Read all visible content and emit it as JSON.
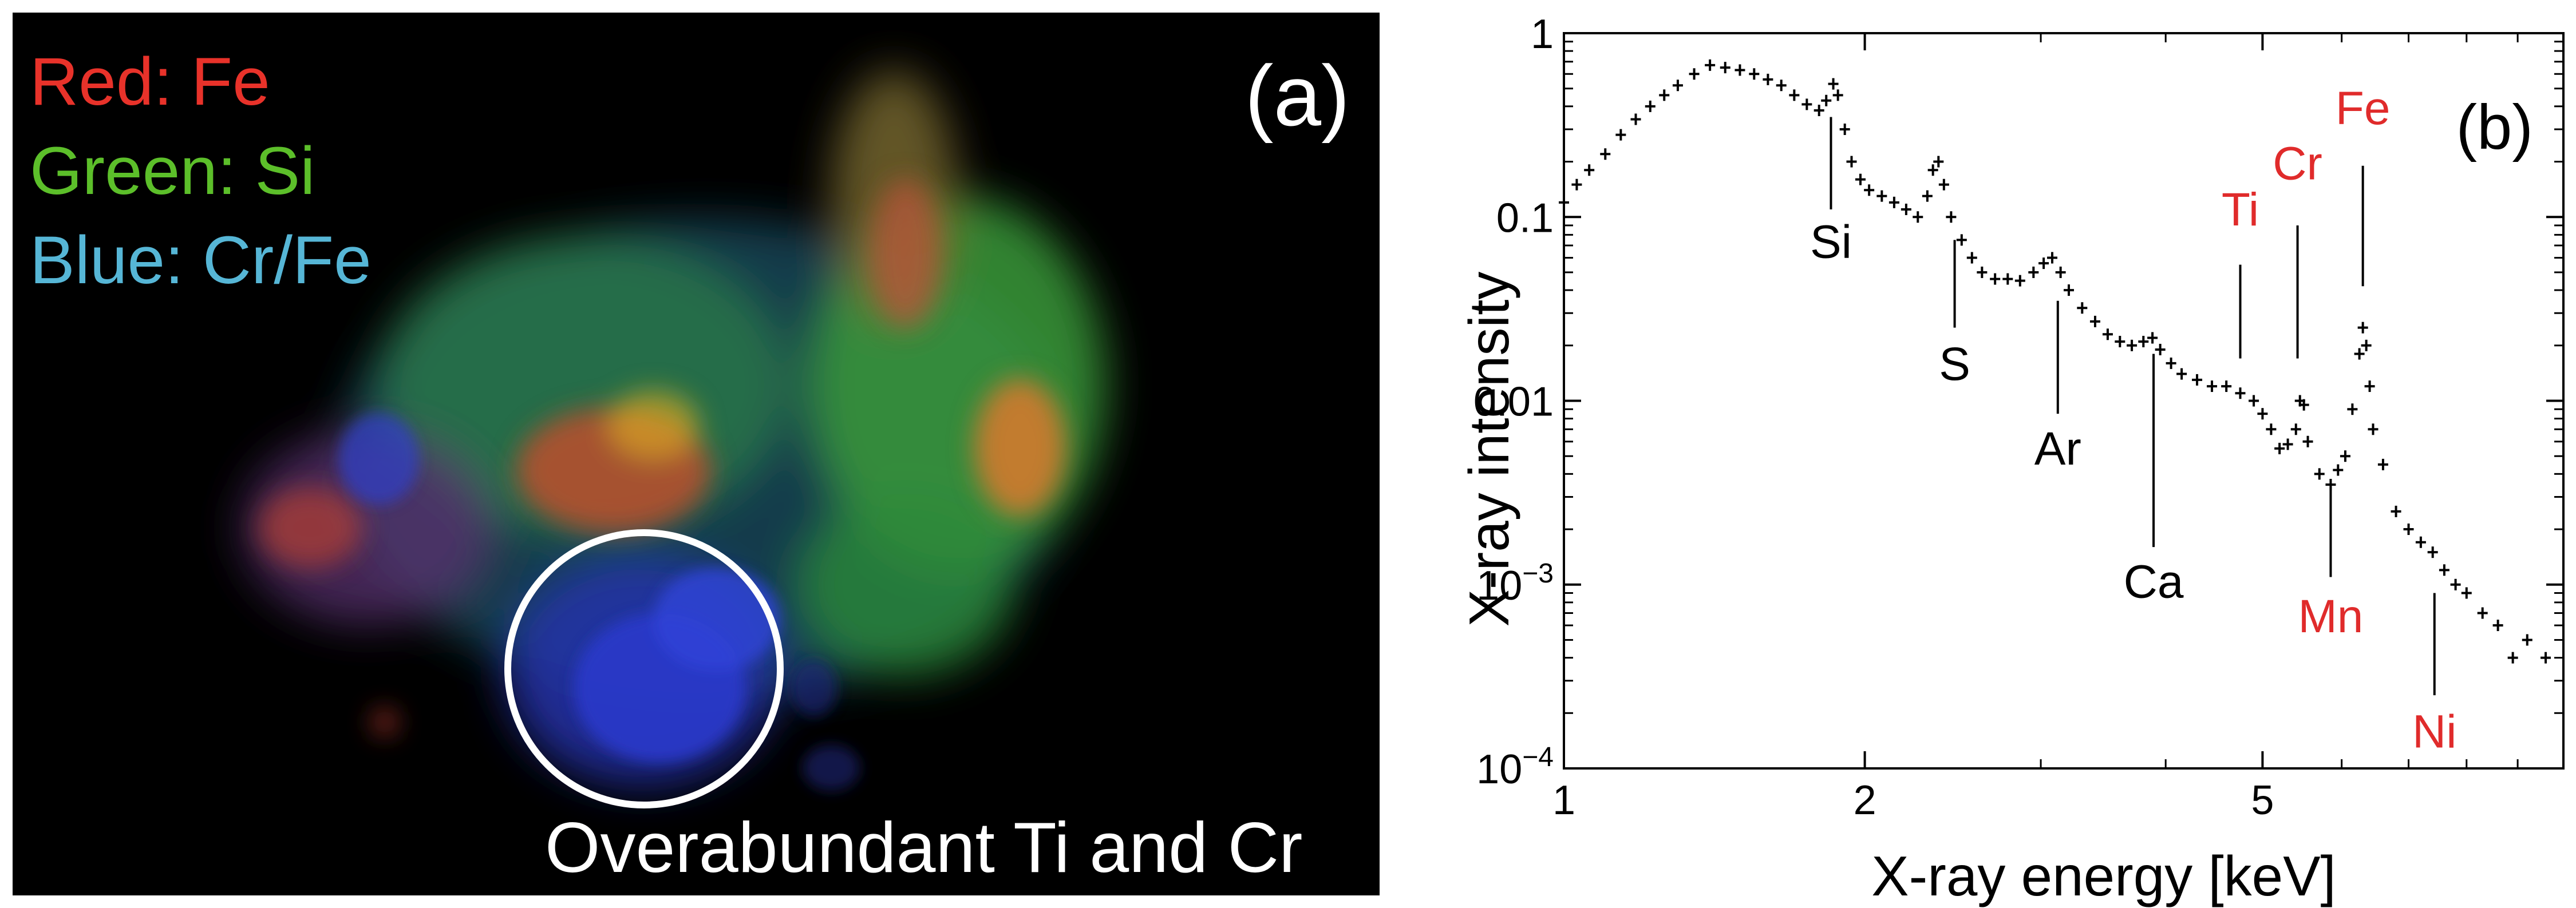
{
  "panel_a": {
    "label": "(a)",
    "legend": [
      {
        "text": "Red: Fe",
        "color": "#e8322a"
      },
      {
        "text": "Green: Si",
        "color": "#5cbf2a"
      },
      {
        "text": "Blue: Cr/Fe",
        "color": "#56b6d6"
      }
    ],
    "caption": "Overabundant Ti and Cr"
  },
  "chart_data": {
    "type": "scatter",
    "panel_label": "(b)",
    "title": "",
    "xlabel": "X-ray energy [keV]",
    "ylabel": "X-ray intensity",
    "xscale": "log",
    "yscale": "log",
    "xlim": [
      1,
      10
    ],
    "ylim": [
      0.0001,
      1
    ],
    "x_ticks": [
      {
        "value": 1,
        "label": "1"
      },
      {
        "value": 2,
        "label": "2"
      },
      {
        "value": 5,
        "label": "5"
      }
    ],
    "y_ticks": [
      {
        "value": 1,
        "label": "1"
      },
      {
        "value": 0.1,
        "label": "0.1"
      },
      {
        "value": 0.01,
        "label": "0.01"
      },
      {
        "value": 0.001,
        "label": "10",
        "exp": "−3"
      },
      {
        "value": 0.0001,
        "label": "10",
        "exp": "−4"
      }
    ],
    "series": [
      {
        "points": [
          [
            1.0,
            0.12
          ],
          [
            1.03,
            0.15
          ],
          [
            1.06,
            0.18
          ],
          [
            1.1,
            0.22
          ],
          [
            1.14,
            0.28
          ],
          [
            1.18,
            0.34
          ],
          [
            1.22,
            0.4
          ],
          [
            1.26,
            0.46
          ],
          [
            1.3,
            0.52
          ],
          [
            1.35,
            0.6
          ],
          [
            1.4,
            0.67
          ],
          [
            1.45,
            0.65
          ],
          [
            1.5,
            0.63
          ],
          [
            1.55,
            0.6
          ],
          [
            1.6,
            0.56
          ],
          [
            1.65,
            0.52
          ],
          [
            1.7,
            0.46
          ],
          [
            1.75,
            0.41
          ],
          [
            1.8,
            0.38
          ],
          [
            1.83,
            0.43
          ],
          [
            1.86,
            0.53
          ],
          [
            1.88,
            0.46
          ],
          [
            1.91,
            0.3
          ],
          [
            1.94,
            0.2
          ],
          [
            1.98,
            0.16
          ],
          [
            2.02,
            0.14
          ],
          [
            2.08,
            0.13
          ],
          [
            2.14,
            0.12
          ],
          [
            2.2,
            0.11
          ],
          [
            2.26,
            0.1
          ],
          [
            2.31,
            0.13
          ],
          [
            2.34,
            0.18
          ],
          [
            2.37,
            0.2
          ],
          [
            2.4,
            0.15
          ],
          [
            2.44,
            0.1
          ],
          [
            2.5,
            0.075
          ],
          [
            2.56,
            0.06
          ],
          [
            2.62,
            0.05
          ],
          [
            2.7,
            0.046
          ],
          [
            2.78,
            0.046
          ],
          [
            2.86,
            0.045
          ],
          [
            2.95,
            0.05
          ],
          [
            3.02,
            0.056
          ],
          [
            3.08,
            0.06
          ],
          [
            3.14,
            0.05
          ],
          [
            3.2,
            0.04
          ],
          [
            3.3,
            0.032
          ],
          [
            3.4,
            0.027
          ],
          [
            3.5,
            0.023
          ],
          [
            3.6,
            0.021
          ],
          [
            3.7,
            0.02
          ],
          [
            3.8,
            0.021
          ],
          [
            3.88,
            0.022
          ],
          [
            3.95,
            0.019
          ],
          [
            4.05,
            0.016
          ],
          [
            4.15,
            0.014
          ],
          [
            4.3,
            0.013
          ],
          [
            4.45,
            0.012
          ],
          [
            4.6,
            0.012
          ],
          [
            4.75,
            0.011
          ],
          [
            4.9,
            0.01
          ],
          [
            5.0,
            0.0085
          ],
          [
            5.1,
            0.007
          ],
          [
            5.2,
            0.0055
          ],
          [
            5.3,
            0.0058
          ],
          [
            5.4,
            0.007
          ],
          [
            5.45,
            0.01
          ],
          [
            5.5,
            0.0095
          ],
          [
            5.55,
            0.006
          ],
          [
            5.7,
            0.004
          ],
          [
            5.85,
            0.0035
          ],
          [
            5.95,
            0.0042
          ],
          [
            6.05,
            0.005
          ],
          [
            6.15,
            0.009
          ],
          [
            6.25,
            0.018
          ],
          [
            6.3,
            0.025
          ],
          [
            6.35,
            0.02
          ],
          [
            6.4,
            0.012
          ],
          [
            6.45,
            0.007
          ],
          [
            6.6,
            0.0045
          ],
          [
            6.8,
            0.0025
          ],
          [
            7.0,
            0.002
          ],
          [
            7.2,
            0.0017
          ],
          [
            7.4,
            0.0015
          ],
          [
            7.6,
            0.0012
          ],
          [
            7.8,
            0.001
          ],
          [
            8.0,
            0.0009
          ],
          [
            8.3,
            0.0007
          ],
          [
            8.6,
            0.0006
          ],
          [
            8.9,
            0.0004
          ],
          [
            9.2,
            0.0005
          ],
          [
            9.6,
            0.0004
          ]
        ]
      }
    ],
    "annotations": [
      {
        "text": "Si",
        "x": 1.85,
        "color": "#000000"
      },
      {
        "text": "S",
        "x": 2.46,
        "color": "#000000"
      },
      {
        "text": "Ar",
        "x": 3.12,
        "color": "#000000"
      },
      {
        "text": "Ca",
        "x": 3.89,
        "color": "#000000"
      },
      {
        "text": "Ti",
        "x": 4.75,
        "color": "#e02b2b"
      },
      {
        "text": "Cr",
        "x": 5.42,
        "color": "#e02b2b"
      },
      {
        "text": "Fe",
        "x": 6.3,
        "color": "#e02b2b"
      },
      {
        "text": "Mn",
        "x": 5.85,
        "color": "#e02b2b"
      },
      {
        "text": "Ni",
        "x": 7.43,
        "color": "#e02b2b"
      }
    ]
  }
}
